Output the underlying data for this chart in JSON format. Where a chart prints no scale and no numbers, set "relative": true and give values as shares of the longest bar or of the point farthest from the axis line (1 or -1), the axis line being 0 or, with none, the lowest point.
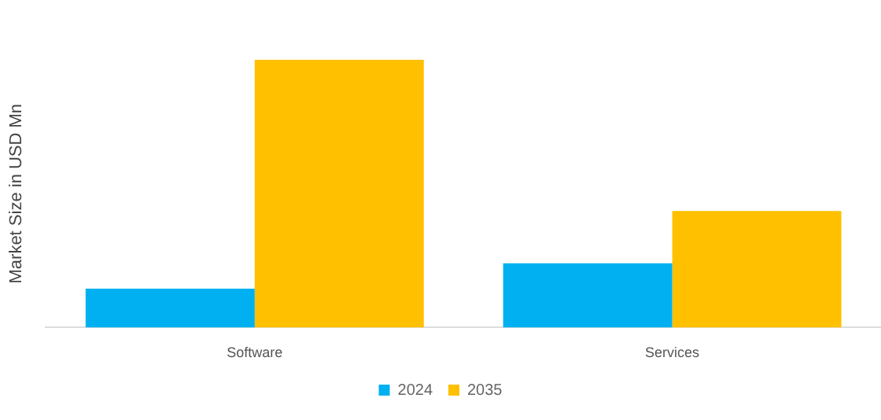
{
  "chart_data": {
    "type": "bar",
    "ylabel": "Market Size in USD Mn",
    "categories": [
      "Software",
      "Services"
    ],
    "relative": true,
    "legend": "bottom",
    "grid": false,
    "series": [
      {
        "name": "2024",
        "color": "#00b0f0",
        "values": [
          0.145,
          0.24
        ]
      },
      {
        "name": "2035",
        "color": "#ffc000",
        "values": [
          1,
          0.435
        ]
      }
    ]
  }
}
